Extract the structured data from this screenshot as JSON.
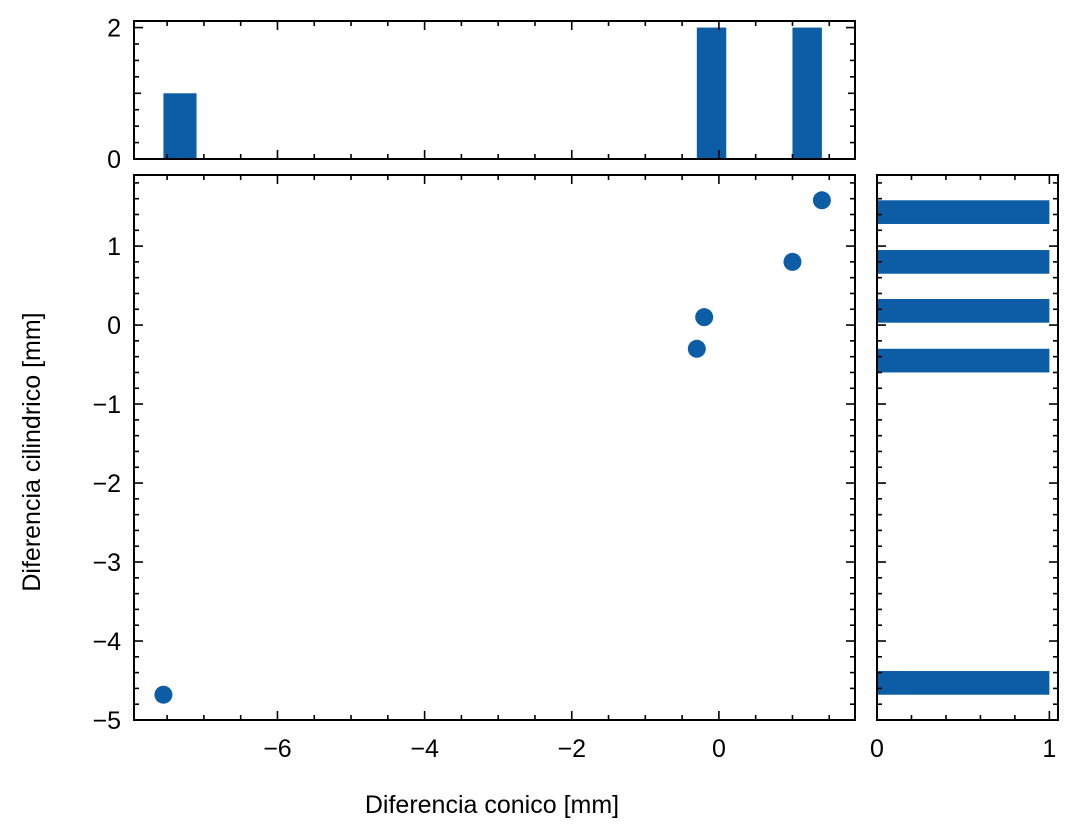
{
  "chart_data": {
    "type": "scatter",
    "xlabel": "Diferencia conico [mm]",
    "ylabel": "Diferencia cilindrico [mm]",
    "xlim": [
      -7.95,
      1.85
    ],
    "ylim": [
      -5.0,
      1.9
    ],
    "x_ticks": [
      -6,
      -4,
      -2,
      0
    ],
    "x_tick_labels": [
      "−6",
      "−4",
      "−2",
      "0"
    ],
    "y_ticks": [
      -5,
      -4,
      -3,
      -2,
      -1,
      0,
      1
    ],
    "y_tick_labels": [
      "−5",
      "−4",
      "−3",
      "−2",
      "−1",
      "0",
      "1"
    ],
    "color": "#0c5da5",
    "points": [
      {
        "x": -7.55,
        "y": -4.68
      },
      {
        "x": -0.3,
        "y": -0.3
      },
      {
        "x": -0.2,
        "y": 0.1
      },
      {
        "x": 1.0,
        "y": 0.8
      },
      {
        "x": 1.4,
        "y": 1.58
      }
    ],
    "top_histogram": {
      "ylim": [
        0,
        2.1
      ],
      "y_ticks": [
        0,
        2
      ],
      "y_tick_labels": [
        "0",
        "2"
      ],
      "bins": [
        {
          "x0": -7.55,
          "x1": -7.1,
          "count": 1
        },
        {
          "x0": -0.3,
          "x1": 0.1,
          "count": 2
        },
        {
          "x0": 1.0,
          "x1": 1.4,
          "count": 2
        }
      ]
    },
    "right_histogram": {
      "xlim": [
        0,
        1.05
      ],
      "x_ticks": [
        0,
        1
      ],
      "x_tick_labels": [
        "0",
        "1"
      ],
      "bins": [
        {
          "y0": -4.68,
          "y1": -4.38,
          "count": 1
        },
        {
          "y0": -0.6,
          "y1": -0.3,
          "count": 1
        },
        {
          "y0": 0.03,
          "y1": 0.33,
          "count": 1
        },
        {
          "y0": 0.65,
          "y1": 0.95,
          "count": 1
        },
        {
          "y0": 1.28,
          "y1": 1.58,
          "count": 1
        }
      ]
    }
  }
}
